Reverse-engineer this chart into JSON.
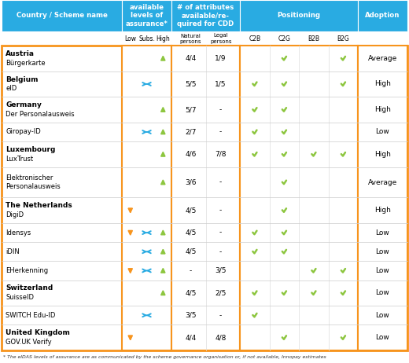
{
  "header_bg": "#29ABE2",
  "border_color": "#F7941D",
  "green_check_color": "#8DC63F",
  "arrow_up_color": "#8DC63F",
  "arrow_down_color": "#F7941D",
  "arrow_side_color": "#29ABE2",
  "footnote": "* The eIDAS levels of assurance are as communicated by the scheme governance organisation or, if not available, Innopay estimates",
  "rows": [
    {
      "country": "Austria",
      "scheme": "Bürgerkarte",
      "arrows": [
        {
          "pos": "high",
          "color": "green"
        }
      ],
      "nat_persons": "4/4",
      "leg_persons": "1/9",
      "c2b": false,
      "c2g": true,
      "b2b": false,
      "b2g": true,
      "adoption": "Average"
    },
    {
      "country": "Belgium",
      "scheme": "eID",
      "arrows": [
        {
          "pos": "subs",
          "color": "blue"
        }
      ],
      "nat_persons": "5/5",
      "leg_persons": "1/5",
      "c2b": true,
      "c2g": true,
      "b2b": false,
      "b2g": true,
      "adoption": "High"
    },
    {
      "country": "Germany",
      "scheme": "Der Personalausweis",
      "arrows": [
        {
          "pos": "high",
          "color": "green"
        }
      ],
      "nat_persons": "5/7",
      "leg_persons": "-",
      "c2b": true,
      "c2g": true,
      "b2b": false,
      "b2g": false,
      "adoption": "High"
    },
    {
      "country": "",
      "scheme": "Giropay-ID",
      "arrows": [
        {
          "pos": "subs",
          "color": "blue"
        },
        {
          "pos": "high",
          "color": "green"
        }
      ],
      "nat_persons": "2/7",
      "leg_persons": "-",
      "c2b": true,
      "c2g": true,
      "b2b": false,
      "b2g": false,
      "adoption": "Low"
    },
    {
      "country": "Luxembourg",
      "scheme": "LuxTrust",
      "arrows": [
        {
          "pos": "high",
          "color": "green"
        }
      ],
      "nat_persons": "4/6",
      "leg_persons": "7/8",
      "c2b": true,
      "c2g": true,
      "b2b": true,
      "b2g": true,
      "adoption": "High"
    },
    {
      "country": "",
      "scheme": "Elektronischer\nPersonalausweis",
      "arrows": [
        {
          "pos": "high",
          "color": "green"
        }
      ],
      "nat_persons": "3/6",
      "leg_persons": "-",
      "c2b": false,
      "c2g": true,
      "b2b": false,
      "b2g": false,
      "adoption": "Average"
    },
    {
      "country": "The Netherlands",
      "scheme": "DigiD",
      "arrows": [
        {
          "pos": "low",
          "color": "orange"
        }
      ],
      "nat_persons": "4/5",
      "leg_persons": "-",
      "c2b": false,
      "c2g": true,
      "b2b": false,
      "b2g": false,
      "adoption": "High"
    },
    {
      "country": "",
      "scheme": "Idensys",
      "arrows": [
        {
          "pos": "low",
          "color": "orange"
        },
        {
          "pos": "subs",
          "color": "blue"
        },
        {
          "pos": "high",
          "color": "green"
        }
      ],
      "nat_persons": "4/5",
      "leg_persons": "-",
      "c2b": true,
      "c2g": true,
      "b2b": false,
      "b2g": false,
      "adoption": "Low"
    },
    {
      "country": "",
      "scheme": "iDIN",
      "arrows": [
        {
          "pos": "subs",
          "color": "blue"
        },
        {
          "pos": "high",
          "color": "green"
        }
      ],
      "nat_persons": "4/5",
      "leg_persons": "-",
      "c2b": true,
      "c2g": true,
      "b2b": false,
      "b2g": false,
      "adoption": "Low"
    },
    {
      "country": "",
      "scheme": "EHerkenning",
      "arrows": [
        {
          "pos": "low",
          "color": "orange"
        },
        {
          "pos": "subs",
          "color": "blue"
        },
        {
          "pos": "high",
          "color": "green"
        }
      ],
      "nat_persons": "-",
      "leg_persons": "3/5",
      "c2b": false,
      "c2g": false,
      "b2b": true,
      "b2g": true,
      "adoption": "Low"
    },
    {
      "country": "Switzerland",
      "scheme": "SuisseID",
      "arrows": [
        {
          "pos": "high",
          "color": "green"
        }
      ],
      "nat_persons": "4/5",
      "leg_persons": "2/5",
      "c2b": true,
      "c2g": true,
      "b2b": true,
      "b2g": true,
      "adoption": "Low"
    },
    {
      "country": "",
      "scheme": "SWITCH Edu-ID",
      "arrows": [
        {
          "pos": "subs",
          "color": "blue"
        }
      ],
      "nat_persons": "3/5",
      "leg_persons": "-",
      "c2b": true,
      "c2g": false,
      "b2b": false,
      "b2g": false,
      "adoption": "Low"
    },
    {
      "country": "United Kingdom",
      "scheme": "GOV.UK Verify",
      "arrows": [
        {
          "pos": "low",
          "color": "orange"
        }
      ],
      "nat_persons": "4/4",
      "leg_persons": "4/8",
      "c2b": false,
      "c2g": true,
      "b2b": false,
      "b2g": true,
      "adoption": "Low"
    }
  ]
}
